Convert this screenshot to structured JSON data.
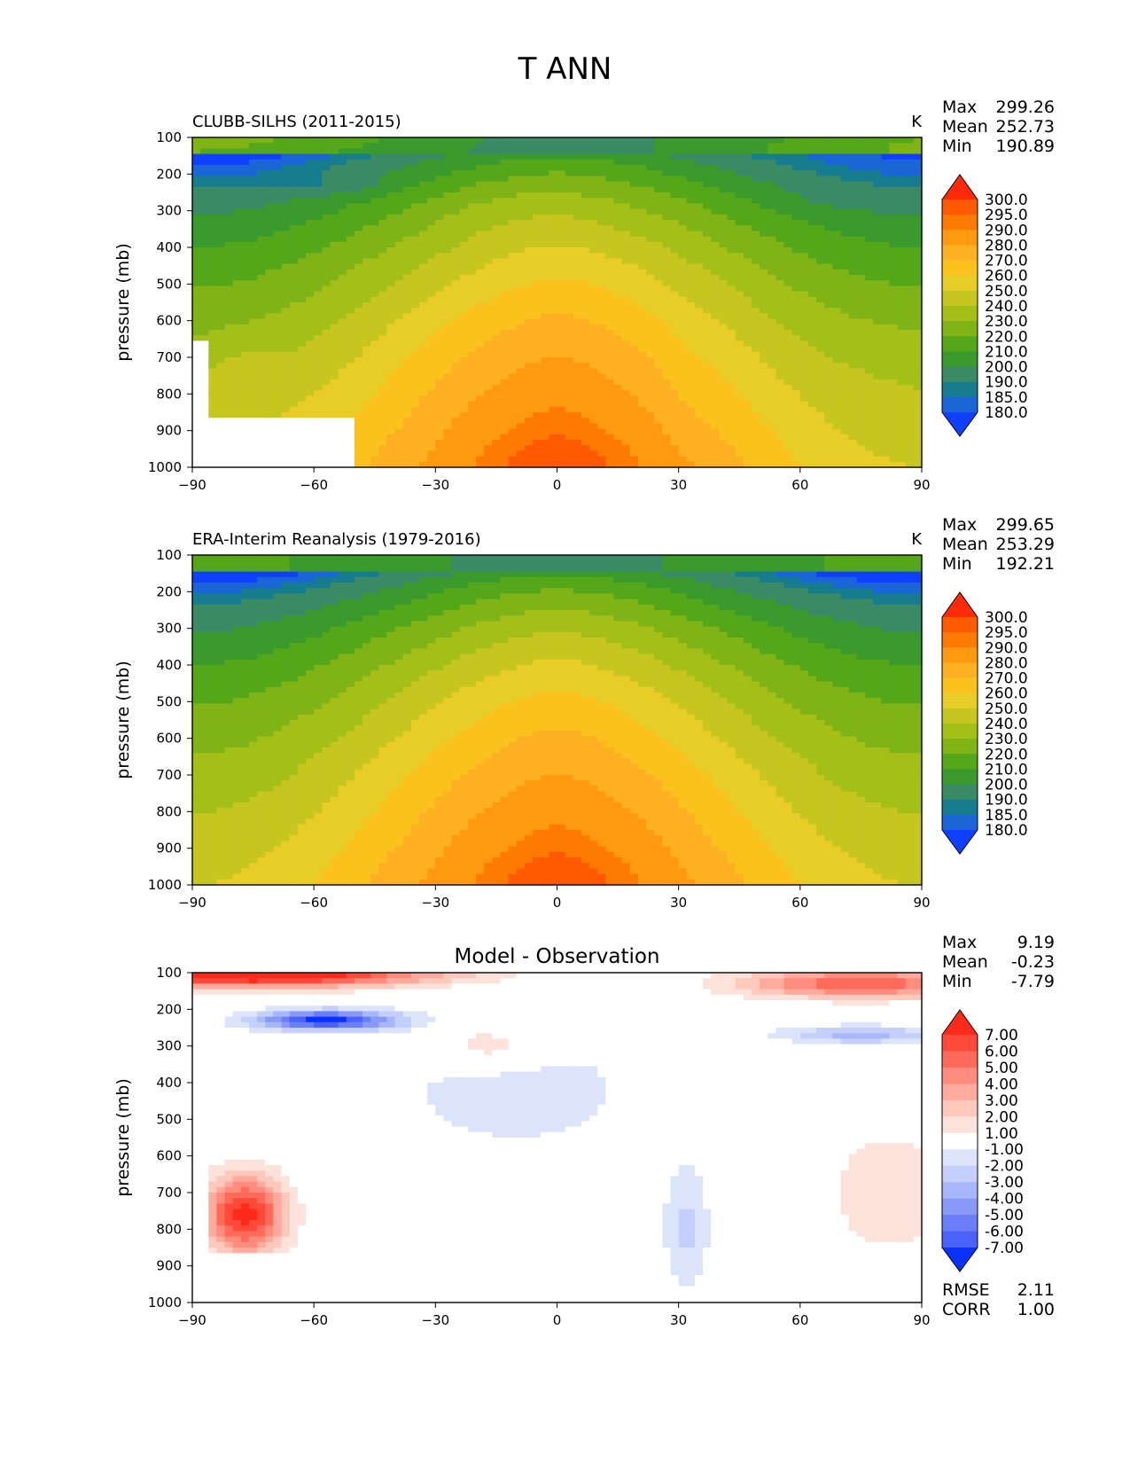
{
  "figure_title": "T ANN",
  "chart_data": [
    {
      "type": "heatmap",
      "title": "CLUBB-SILHS (2011-2015)",
      "units": "K",
      "ylabel": "pressure (mb)",
      "xlabel": "",
      "xlim": [
        -90,
        90
      ],
      "ylim": [
        1000,
        100
      ],
      "x_ticks": [
        "−90",
        "−60",
        "−30",
        "0",
        "30",
        "60",
        "90"
      ],
      "y_ticks": [
        "100",
        "200",
        "300",
        "400",
        "500",
        "600",
        "700",
        "800",
        "900",
        "1000"
      ],
      "stats": {
        "max_label": "Max",
        "max": "299.26",
        "mean_label": "Mean",
        "mean": "252.73",
        "min_label": "Min",
        "min": "190.89"
      },
      "colorbar": {
        "labels": [
          "300.0",
          "295.0",
          "290.0",
          "280.0",
          "270.0",
          "260.0",
          "250.0",
          "240.0",
          "230.0",
          "220.0",
          "210.0",
          "200.0",
          "190.0",
          "185.0",
          "180.0"
        ],
        "colors": [
          "#ff2a0a",
          "#ff5a00",
          "#ff7a00",
          "#ff9a10",
          "#fdb022",
          "#fbc21e",
          "#e8cc28",
          "#c7c620",
          "#a4bf18",
          "#7fb316",
          "#55a71a",
          "#3a9a2c",
          "#3b8a66",
          "#157d8e",
          "#1a66d6",
          "#1040ff"
        ]
      },
      "field": "model"
    },
    {
      "type": "heatmap",
      "title": "ERA-Interim Reanalysis (1979-2016)",
      "units": "K",
      "ylabel": "pressure (mb)",
      "xlabel": "",
      "xlim": [
        -90,
        90
      ],
      "ylim": [
        1000,
        100
      ],
      "x_ticks": [
        "−90",
        "−60",
        "−30",
        "0",
        "30",
        "60",
        "90"
      ],
      "y_ticks": [
        "100",
        "200",
        "300",
        "400",
        "500",
        "600",
        "700",
        "800",
        "900",
        "1000"
      ],
      "stats": {
        "max_label": "Max",
        "max": "299.65",
        "mean_label": "Mean",
        "mean": "253.29",
        "min_label": "Min",
        "min": "192.21"
      },
      "colorbar": {
        "labels": [
          "300.0",
          "295.0",
          "290.0",
          "280.0",
          "270.0",
          "260.0",
          "250.0",
          "240.0",
          "230.0",
          "220.0",
          "210.0",
          "200.0",
          "190.0",
          "185.0",
          "180.0"
        ],
        "colors": [
          "#ff2a0a",
          "#ff5a00",
          "#ff7a00",
          "#ff9a10",
          "#fdb022",
          "#fbc21e",
          "#e8cc28",
          "#c7c620",
          "#a4bf18",
          "#7fb316",
          "#55a71a",
          "#3a9a2c",
          "#3b8a66",
          "#157d8e",
          "#1a66d6",
          "#1040ff"
        ]
      },
      "field": "obs"
    },
    {
      "type": "heatmap",
      "title": "Model - Observation",
      "units": "",
      "ylabel": "pressure (mb)",
      "xlabel": "",
      "xlim": [
        -90,
        90
      ],
      "ylim": [
        1000,
        100
      ],
      "x_ticks": [
        "−90",
        "−60",
        "−30",
        "0",
        "30",
        "60",
        "90"
      ],
      "y_ticks": [
        "100",
        "200",
        "300",
        "400",
        "500",
        "600",
        "700",
        "800",
        "900",
        "1000"
      ],
      "stats": {
        "max_label": "Max",
        "max": "9.19",
        "mean_label": "Mean",
        "mean": "-0.23",
        "min_label": "Min",
        "min": "-7.79"
      },
      "extra_stats": {
        "rmse_label": "RMSE",
        "rmse": "2.11",
        "corr_label": "CORR",
        "corr": "1.00"
      },
      "colorbar": {
        "labels": [
          "7.00",
          "6.00",
          "5.00",
          "4.00",
          "3.00",
          "2.00",
          "1.00",
          "-1.00",
          "-2.00",
          "-3.00",
          "-4.00",
          "-5.00",
          "-6.00",
          "-7.00"
        ],
        "colors": [
          "#ff2a1a",
          "#ff4a3a",
          "#ff6a5a",
          "#ff8c7c",
          "#ffaa9c",
          "#ffc8bc",
          "#fde2dc",
          "#ffffff",
          "#dce4fb",
          "#c4cffb",
          "#a8b6fb",
          "#8899f8",
          "#6a7ef8",
          "#4a62fa",
          "#0a32ff"
        ]
      },
      "field": "diff"
    }
  ]
}
